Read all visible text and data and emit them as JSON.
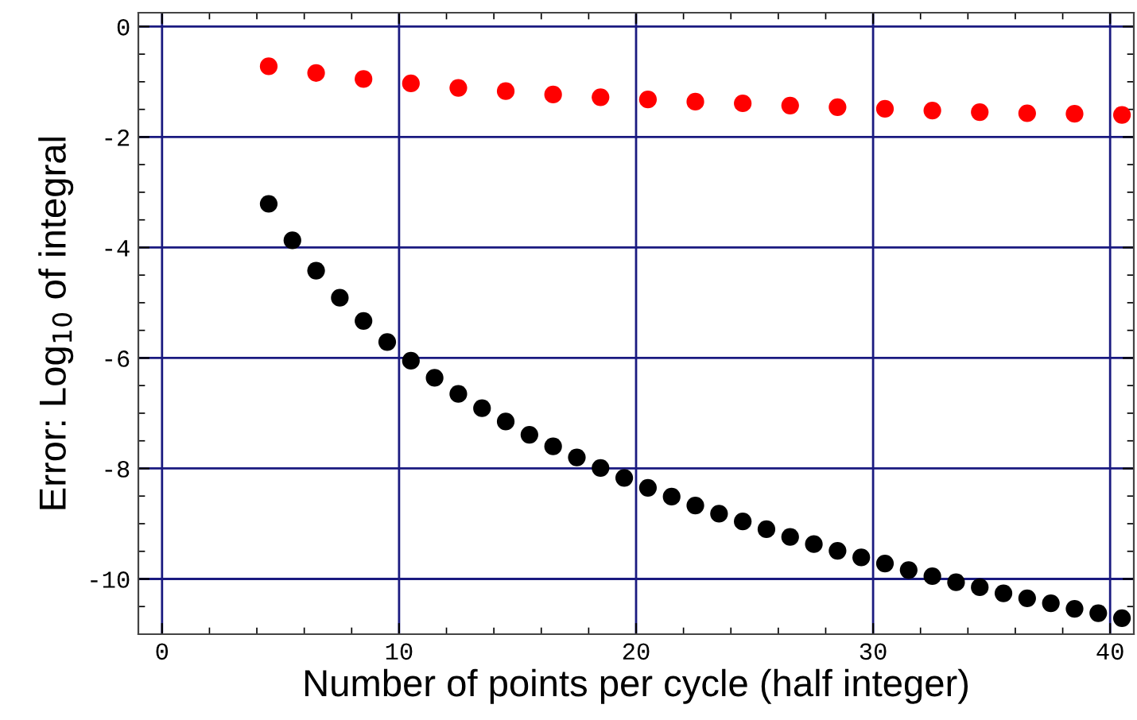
{
  "chart_data": {
    "type": "scatter",
    "xlabel": "Number of points per cycle (half integer)",
    "ylabel": "Error: Log$_{10}$ of integral",
    "xlim": [
      -1,
      41
    ],
    "xticks": [
      0,
      10,
      20,
      30,
      40
    ],
    "ylim": [
      -11,
      0.25
    ],
    "yticks": [
      -10,
      -8,
      -6,
      -4,
      -2,
      0
    ],
    "grid": true,
    "marker": "circle",
    "series": [
      {
        "color": "#ff0000",
        "x": [
          4.5,
          6.5,
          8.5,
          10.5,
          12.5,
          14.5,
          16.5,
          18.5,
          20.5,
          22.5,
          24.5,
          26.5,
          28.5,
          30.5,
          32.5,
          34.5,
          36.5,
          38.5,
          40.5
        ],
        "values": [
          -0.72,
          -0.84,
          -0.95,
          -1.03,
          -1.11,
          -1.17,
          -1.23,
          -1.28,
          -1.32,
          -1.36,
          -1.39,
          -1.43,
          -1.46,
          -1.49,
          -1.52,
          -1.55,
          -1.57,
          -1.58,
          -1.6
        ]
      },
      {
        "color": "#000000",
        "x": [
          4.5,
          5.5,
          6.5,
          7.5,
          8.5,
          9.5,
          10.5,
          11.5,
          12.5,
          13.5,
          14.5,
          15.5,
          16.5,
          17.5,
          18.5,
          19.5,
          20.5,
          21.5,
          22.5,
          23.5,
          24.5,
          25.5,
          26.5,
          27.5,
          28.5,
          29.5,
          30.5,
          31.5,
          32.5,
          33.5,
          34.5,
          35.5,
          36.5,
          37.5,
          38.5,
          39.5,
          40.5
        ],
        "values": [
          -3.21,
          -3.87,
          -4.42,
          -4.91,
          -5.33,
          -5.71,
          -6.05,
          -6.36,
          -6.65,
          -6.91,
          -7.15,
          -7.39,
          -7.6,
          -7.8,
          -7.99,
          -8.17,
          -8.35,
          -8.51,
          -8.67,
          -8.82,
          -8.96,
          -9.1,
          -9.24,
          -9.37,
          -9.49,
          -9.61,
          -9.72,
          -9.84,
          -9.95,
          -10.06,
          -10.15,
          -10.26,
          -10.35,
          -10.44,
          -10.54,
          -10.62,
          -10.71
        ]
      }
    ]
  }
}
